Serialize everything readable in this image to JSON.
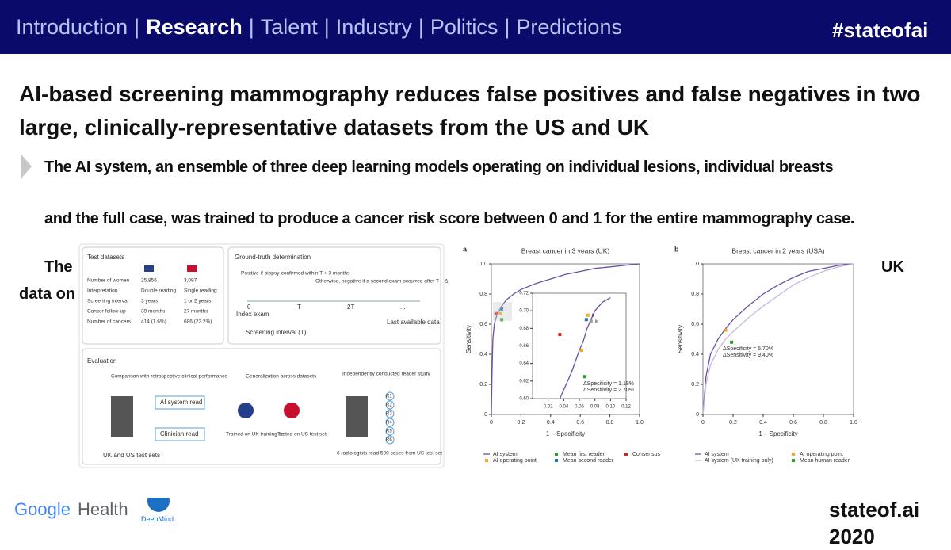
{
  "header": {
    "nav": [
      "Introduction",
      "Research",
      "Talent",
      "Industry",
      "Politics",
      "Predictions"
    ],
    "separator": "|",
    "active": 1,
    "hashtag": "#stateofai"
  },
  "title": "AI-based screening mammography reduces false positives and false negatives in two large, clinically-representative datasets from the US and UK",
  "bullets": [
    "The AI system, an ensemble of three deep learning models operating on individual lesions, individual breasts",
    "and the full case, was trained to produce a cancer risk score between 0 and 1 for the entire mammography case."
  ],
  "hidden_fragments": [
    "The",
    "UK",
    "data on"
  ],
  "figure": {
    "test_datasets": {
      "title": "Test datasets",
      "rows": [
        [
          "Number of women",
          "25,856",
          "3,097"
        ],
        [
          "Interpretation",
          "Double reading",
          "Single reading"
        ],
        [
          "Screening interval",
          "3 years",
          "1 or 2 years"
        ],
        [
          "Cancer follow-up",
          "39 months",
          "27 months"
        ],
        [
          "Number of cancers",
          "414 (1.6%)",
          "686 (22.2%)"
        ]
      ]
    },
    "ground_truth": {
      "title": "Ground-truth determination",
      "positive": "Positive if biopsy-confirmed within T + 3 months",
      "negative": "Otherwise, negative if a second exam occurred after T – Δ",
      "axis": [
        "0",
        "T",
        "2T",
        "..."
      ],
      "index": "Index exam",
      "last": "Last available data",
      "interval": "Screening interval (T)"
    },
    "evaluation": {
      "title": "Evaluation",
      "comparison": "Comparison with retrospective clinical performance",
      "ai_read": "AI system read",
      "clinician_read": "Clinician read",
      "sets": "UK and US test sets",
      "generalization": "Generalization across datasets",
      "trained": "Trained on UK training set",
      "tested": "Tested on US test set",
      "reader_study": "Independently conducted reader study",
      "readers": [
        "R1",
        "R2",
        "R3",
        "R4",
        "R5",
        "R6"
      ],
      "reader_note": "6 radiologists read 500 cases from US test set"
    },
    "charts": [
      {
        "type": "line",
        "label": "a",
        "title": "Breast cancer in 3 years (UK)",
        "xlabel": "1 – Specificity",
        "ylabel": "Sensitivity",
        "xlim": [
          0,
          1
        ],
        "ylim": [
          0,
          1
        ],
        "xticks": [
          0,
          0.2,
          0.4,
          0.6,
          0.8,
          {
            "value": 1,
            "label": "1.0"
          }
        ],
        "yticks": [
          0,
          0.2,
          0.4,
          0.6,
          0.8,
          {
            "value": 1,
            "label": "1.0"
          }
        ],
        "series": [
          {
            "name": "AI system",
            "color": "#6a4fa3",
            "x": [
              0,
              0.005,
              0.01,
              0.02,
              0.04,
              0.07,
              0.1,
              0.15,
              0.2,
              0.3,
              0.4,
              0.5,
              0.6,
              0.7,
              0.8,
              0.9,
              1
            ],
            "y": [
              0,
              0.3,
              0.5,
              0.6,
              0.67,
              0.72,
              0.76,
              0.8,
              0.83,
              0.87,
              0.9,
              0.93,
              0.95,
              0.97,
              0.98,
              0.99,
              1
            ]
          }
        ],
        "points": [
          {
            "name": "AI operating point",
            "color": "#f5a623",
            "x": 0.06,
            "y": 0.67
          },
          {
            "name": "Mean first reader",
            "color": "#2ca02c",
            "x": 0.07,
            "y": 0.63
          },
          {
            "name": "Mean second reader",
            "color": "#1f77b4",
            "x": 0.07,
            "y": 0.7
          },
          {
            "name": "Consensus",
            "color": "#d62728",
            "x": 0.03,
            "y": 0.67
          }
        ],
        "inset": {
          "xlim": [
            0,
            0.12
          ],
          "ylim": [
            0.6,
            0.72
          ],
          "xticks": [
            0.02,
            0.04,
            0.06,
            0.08,
            {
              "value": 0.1,
              "label": "0.10"
            },
            0.12
          ],
          "yticks": [
            {
              "value": 0.6,
              "label": "0.60"
            },
            0.62,
            0.64,
            0.66,
            0.68,
            {
              "value": 0.7,
              "label": "0.70"
            },
            0.72
          ],
          "series": [
            {
              "color": "#6a4fa3",
              "x": [
                0.035,
                0.04,
                0.05,
                0.06,
                0.065,
                0.07,
                0.08,
                0.09,
                0.1
              ],
              "y": [
                0.6,
                0.61,
                0.63,
                0.655,
                0.665,
                0.68,
                0.7,
                0.71,
                0.715
              ]
            }
          ],
          "points": [
            {
              "label": "i",
              "color": "#f5a623",
              "x": 0.063,
              "y": 0.655
            },
            {
              "label": "ii",
              "color": "#f5a623",
              "x": 0.071,
              "y": 0.695
            },
            {
              "label": "iii",
              "color": "#999999",
              "x": 0.075,
              "y": 0.688
            },
            {
              "color": "#2ca02c",
              "x": 0.067,
              "y": 0.625
            },
            {
              "color": "#1f77b4",
              "x": 0.069,
              "y": 0.69
            },
            {
              "color": "#d62728",
              "x": 0.035,
              "y": 0.673
            }
          ],
          "annotation": [
            "ΔSpecificity = 1.18%",
            "ΔSensitivity = 2.70%"
          ]
        }
      },
      {
        "type": "line",
        "label": "b",
        "title": "Breast cancer in 2 years (USA)",
        "xlabel": "1 – Specificity",
        "ylabel": "Sensitivity",
        "xlim": [
          0,
          1
        ],
        "ylim": [
          0,
          1
        ],
        "xticks": [
          0,
          0.2,
          0.4,
          0.6,
          0.8,
          {
            "value": 1,
            "label": "1.0"
          }
        ],
        "yticks": [
          0,
          0.2,
          0.4,
          0.6,
          0.8,
          {
            "value": 1,
            "label": "1.0"
          }
        ],
        "series": [
          {
            "name": "AI system",
            "color": "#6a4fa3",
            "x": [
              0,
              0.02,
              0.05,
              0.1,
              0.15,
              0.2,
              0.3,
              0.4,
              0.5,
              0.6,
              0.7,
              0.8,
              0.9,
              1
            ],
            "y": [
              0,
              0.25,
              0.4,
              0.5,
              0.57,
              0.63,
              0.72,
              0.8,
              0.86,
              0.91,
              0.95,
              0.97,
              0.99,
              1
            ]
          },
          {
            "name": "AI system (UK training only)",
            "color": "#c7b8e0",
            "x": [
              0,
              0.02,
              0.05,
              0.1,
              0.15,
              0.2,
              0.3,
              0.4,
              0.5,
              0.6,
              0.7,
              0.8,
              0.9,
              1
            ],
            "y": [
              0,
              0.2,
              0.33,
              0.43,
              0.5,
              0.55,
              0.64,
              0.72,
              0.79,
              0.86,
              0.91,
              0.95,
              0.98,
              1
            ]
          }
        ],
        "points": [
          {
            "name": "AI operating point",
            "color": "#f5a623",
            "x": 0.15,
            "y": 0.56
          },
          {
            "name": "Mean human reader",
            "color": "#2ca02c",
            "x": 0.19,
            "y": 0.48
          }
        ],
        "annotation": [
          "ΔSpecificity = 5.70%",
          "ΔSensitivity = 9.40%"
        ]
      }
    ]
  },
  "footer": {
    "google": "Google",
    "health": "Health",
    "deepmind": "DeepMind",
    "site": "stateof.ai 2020"
  }
}
